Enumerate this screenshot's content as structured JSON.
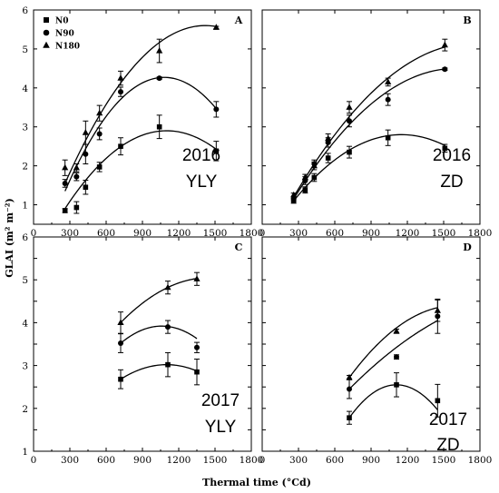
{
  "chart_data": [
    {
      "type": "scatter",
      "panel": "A",
      "label_line1": "2016",
      "label_line2": "YLY",
      "xlim": [
        0,
        1800
      ],
      "ylim": [
        0.5,
        6
      ],
      "xticks": [
        "0",
        "300",
        "600",
        "900",
        "1200",
        "1500",
        "1800"
      ],
      "yticks": [
        "1",
        "2",
        "3",
        "4",
        "5",
        "6"
      ],
      "series": [
        {
          "name": "N0",
          "marker": "square",
          "x": [
            260,
            355,
            430,
            545,
            720,
            1040,
            1510
          ],
          "y": [
            0.85,
            0.93,
            1.45,
            1.97,
            2.5,
            3.0,
            2.38
          ],
          "err": [
            0.05,
            0.15,
            0.18,
            0.12,
            0.22,
            0.3,
            0.25
          ]
        },
        {
          "name": "N90",
          "marker": "circle",
          "x": [
            260,
            355,
            430,
            545,
            720,
            1040,
            1510
          ],
          "y": [
            1.55,
            1.72,
            2.3,
            2.82,
            3.9,
            4.25,
            3.45
          ],
          "err": [
            0.1,
            0.1,
            0.25,
            0.15,
            0.12,
            0.03,
            0.2
          ]
        },
        {
          "name": "N180",
          "marker": "triangle",
          "x": [
            260,
            355,
            430,
            545,
            720,
            1040,
            1510
          ],
          "y": [
            1.95,
            1.95,
            2.85,
            3.35,
            4.25,
            4.95,
            5.55
          ],
          "err": [
            0.2,
            0.1,
            0.3,
            0.2,
            0.18,
            0.3,
            0.03
          ]
        }
      ],
      "fits": [
        {
          "x": [
            260,
            1510
          ],
          "vertex": [
            1100,
            2.9
          ],
          "ystart": 0.9
        },
        {
          "x": [
            260,
            1510
          ],
          "vertex": [
            1080,
            4.27
          ],
          "ystart": 1.35
        },
        {
          "x": [
            260,
            1510
          ],
          "vertex": [
            1420,
            5.6
          ],
          "ystart": 1.55
        }
      ],
      "legend": true
    },
    {
      "type": "scatter",
      "panel": "B",
      "label_line1": "2016",
      "label_line2": "ZD",
      "xlim": [
        0,
        1800
      ],
      "ylim": [
        0.5,
        6
      ],
      "xticks": [
        "0",
        "300",
        "600",
        "900",
        "1200",
        "1500",
        "1800"
      ],
      "yticks": [
        "1",
        "2",
        "3",
        "4",
        "5",
        "6"
      ],
      "series": [
        {
          "name": "N0",
          "marker": "square",
          "x": [
            260,
            355,
            430,
            545,
            720,
            1040,
            1510
          ],
          "y": [
            1.1,
            1.38,
            1.7,
            2.2,
            2.35,
            2.72,
            2.45
          ],
          "err": [
            0.06,
            0.08,
            0.1,
            0.12,
            0.15,
            0.2,
            0.1
          ]
        },
        {
          "name": "N90",
          "marker": "circle",
          "x": [
            260,
            355,
            430,
            545,
            720,
            1040,
            1510
          ],
          "y": [
            1.15,
            1.62,
            2.05,
            2.6,
            3.15,
            3.7,
            4.48
          ],
          "err": [
            0.05,
            0.1,
            0.1,
            0.12,
            0.15,
            0.15,
            0.03
          ]
        },
        {
          "name": "N180",
          "marker": "triangle",
          "x": [
            260,
            355,
            430,
            545,
            720,
            1040,
            1510
          ],
          "y": [
            1.25,
            1.7,
            2.0,
            2.7,
            3.5,
            4.15,
            5.1
          ],
          "err": [
            0.05,
            0.08,
            0.1,
            0.12,
            0.15,
            0.1,
            0.15
          ]
        }
      ],
      "fits": [
        {
          "x": [
            260,
            1510
          ],
          "vertex": [
            1150,
            2.8
          ],
          "ystart": 1.1
        },
        {
          "x": [
            260,
            1510
          ],
          "vertex": [
            1600,
            4.5
          ],
          "ystart": 1.15
        },
        {
          "x": [
            260,
            1510
          ],
          "vertex": [
            1750,
            5.15
          ],
          "ystart": 1.2
        }
      ],
      "legend": false
    },
    {
      "type": "scatter",
      "panel": "C",
      "label_line1": "2017",
      "label_line2": "YLY",
      "xlim": [
        0,
        1800
      ],
      "ylim": [
        1,
        6
      ],
      "xticks": [
        "0",
        "300",
        "600",
        "900",
        "1200",
        "1500",
        "1800"
      ],
      "yticks": [
        "1",
        "1.5",
        "2",
        "2.5",
        "3",
        "3.5",
        "4",
        "4.5",
        "5",
        "5.5",
        "6"
      ],
      "series": [
        {
          "name": "N0",
          "marker": "square",
          "x": [
            720,
            1110,
            1350
          ],
          "y": [
            2.68,
            3.02,
            2.85
          ],
          "err": [
            0.22,
            0.28,
            0.3
          ]
        },
        {
          "name": "N90",
          "marker": "circle",
          "x": [
            720,
            1110,
            1350
          ],
          "y": [
            3.52,
            3.9,
            3.42
          ],
          "err": [
            0.22,
            0.15,
            0.12
          ]
        },
        {
          "name": "N180",
          "marker": "triangle",
          "x": [
            720,
            1110,
            1350
          ],
          "y": [
            4.0,
            4.82,
            5.02
          ],
          "err": [
            0.25,
            0.15,
            0.15
          ]
        }
      ],
      "fits": [
        {
          "x": [
            720,
            1350
          ],
          "vertex": [
            1100,
            3.02
          ],
          "ystart": 2.68
        },
        {
          "x": [
            720,
            1350
          ],
          "vertex": [
            1060,
            3.92
          ],
          "ystart": 3.52
        },
        {
          "x": [
            720,
            1350
          ],
          "vertex": [
            1450,
            5.05
          ],
          "ystart": 4.0
        }
      ],
      "legend": false
    },
    {
      "type": "scatter",
      "panel": "D",
      "label_line1": "2017",
      "label_line2": "ZD",
      "xlim": [
        0,
        1800
      ],
      "ylim": [
        1,
        6
      ],
      "xticks": [
        "0",
        "300",
        "600",
        "900",
        "1200",
        "1500",
        "1800"
      ],
      "yticks": [
        "1",
        "1.5",
        "2",
        "2.5",
        "3",
        "3.5",
        "4",
        "4.5",
        "5",
        "5.5",
        "6"
      ],
      "series": [
        {
          "name": "N0",
          "marker": "square",
          "x": [
            720,
            1110,
            1450
          ],
          "y": [
            1.78,
            2.55,
            2.18
          ],
          "err": [
            0.15,
            0.28,
            0.38
          ]
        },
        {
          "name": "N90",
          "marker": "circle",
          "x": [
            720,
            1110,
            1450
          ],
          "y": [
            2.45,
            3.2,
            4.15
          ],
          "err": [
            0.22,
            0.05,
            0.4
          ]
        },
        {
          "name": "N180",
          "marker": "triangle",
          "x": [
            720,
            1110,
            1450
          ],
          "y": [
            2.72,
            3.8,
            4.28
          ],
          "err": [
            0.05,
            0.05,
            0.25
          ]
        }
      ],
      "fits": [
        {
          "x": [
            720,
            1450
          ],
          "vertex": [
            1110,
            2.55
          ],
          "ystart": 1.78
        },
        {
          "x": [
            720,
            1450
          ],
          "vertex": [
            2300,
            4.7
          ],
          "ystart": 2.45
        },
        {
          "x": [
            720,
            1450
          ],
          "vertex": [
            1600,
            4.4
          ],
          "ystart": 2.72
        }
      ],
      "legend": false
    }
  ],
  "y_axis_title": "GLAI (m² m⁻²)",
  "x_axis_title": "Thermal time (°Cd)",
  "legend_entries": [
    {
      "name": "N0",
      "marker": "square"
    },
    {
      "name": "N90",
      "marker": "circle"
    },
    {
      "name": "N180",
      "marker": "triangle"
    }
  ]
}
